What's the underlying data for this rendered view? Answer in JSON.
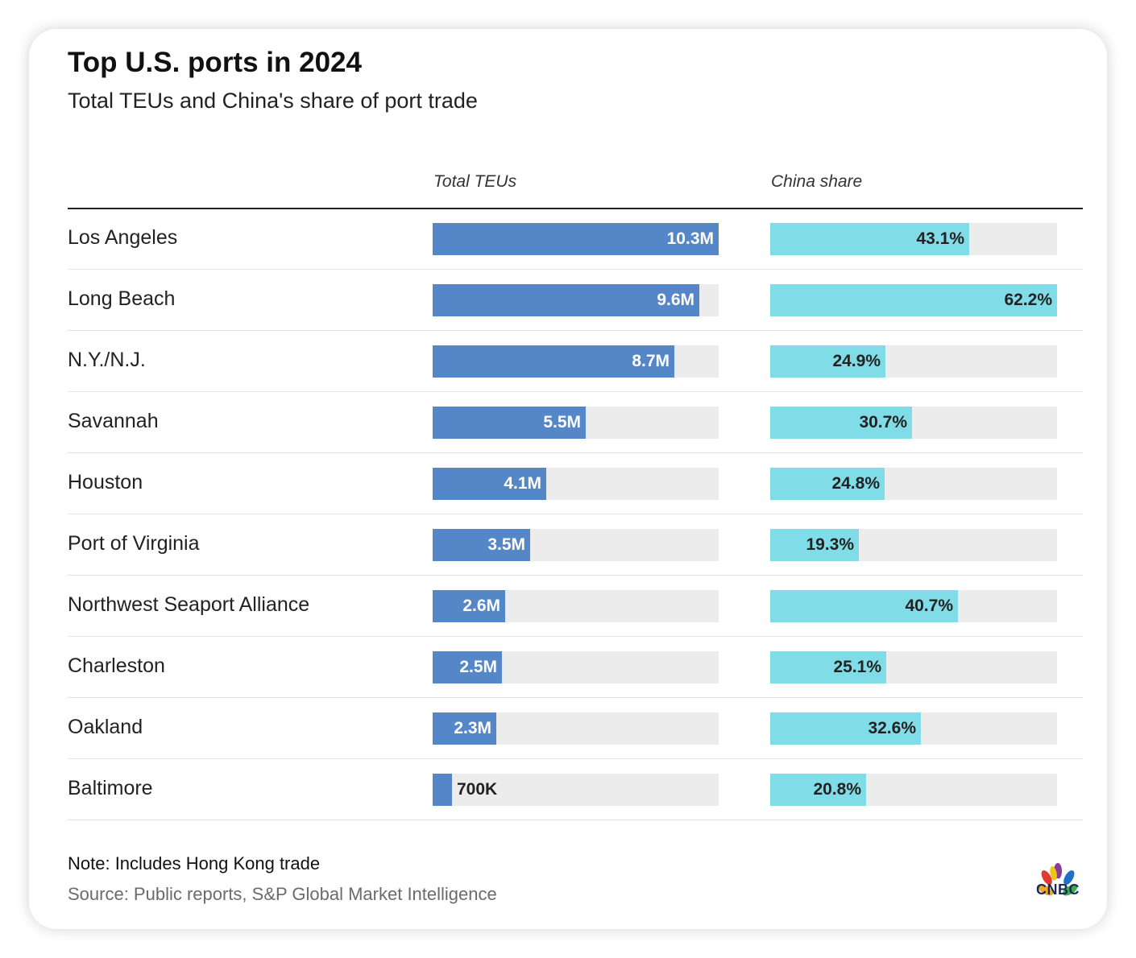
{
  "title": "Top U.S. ports in 2024",
  "subtitle": "Total TEUs and China's share of port trade",
  "columns": {
    "teu": "Total TEUs",
    "china": "China share"
  },
  "colors": {
    "teu_bar": "#5587c8",
    "china_bar": "#80dce7",
    "track": "#ececec"
  },
  "chart_data": {
    "type": "bar",
    "title": "Top U.S. ports in 2024",
    "subtitle": "Total TEUs and China's share of port trade",
    "categories": [
      "Los Angeles",
      "Long Beach",
      "N.Y./N.J.",
      "Savannah",
      "Houston",
      "Port of Virginia",
      "Northwest Seaport Alliance",
      "Charleston",
      "Oakland",
      "Baltimore"
    ],
    "series": [
      {
        "name": "Total TEUs",
        "unit": "TEU",
        "max": 10300000,
        "values": [
          10300000,
          9600000,
          8700000,
          5500000,
          4100000,
          3500000,
          2600000,
          2500000,
          2300000,
          700000
        ],
        "labels": [
          "10.3M",
          "9.6M",
          "8.7M",
          "5.5M",
          "4.1M",
          "3.5M",
          "2.6M",
          "2.5M",
          "2.3M",
          "700K"
        ]
      },
      {
        "name": "China share",
        "unit": "%",
        "max": 62.2,
        "values": [
          43.1,
          62.2,
          24.9,
          30.7,
          24.8,
          19.3,
          40.7,
          25.1,
          32.6,
          20.8
        ],
        "labels": [
          "43.1%",
          "62.2%",
          "24.9%",
          "30.7%",
          "24.8%",
          "19.3%",
          "40.7%",
          "25.1%",
          "32.6%",
          "20.8%"
        ]
      }
    ]
  },
  "footer": {
    "note": "Note: Includes Hong Kong trade",
    "source": "Source: Public reports, S&P Global Market Intelligence",
    "logo_text": "CNBC"
  }
}
